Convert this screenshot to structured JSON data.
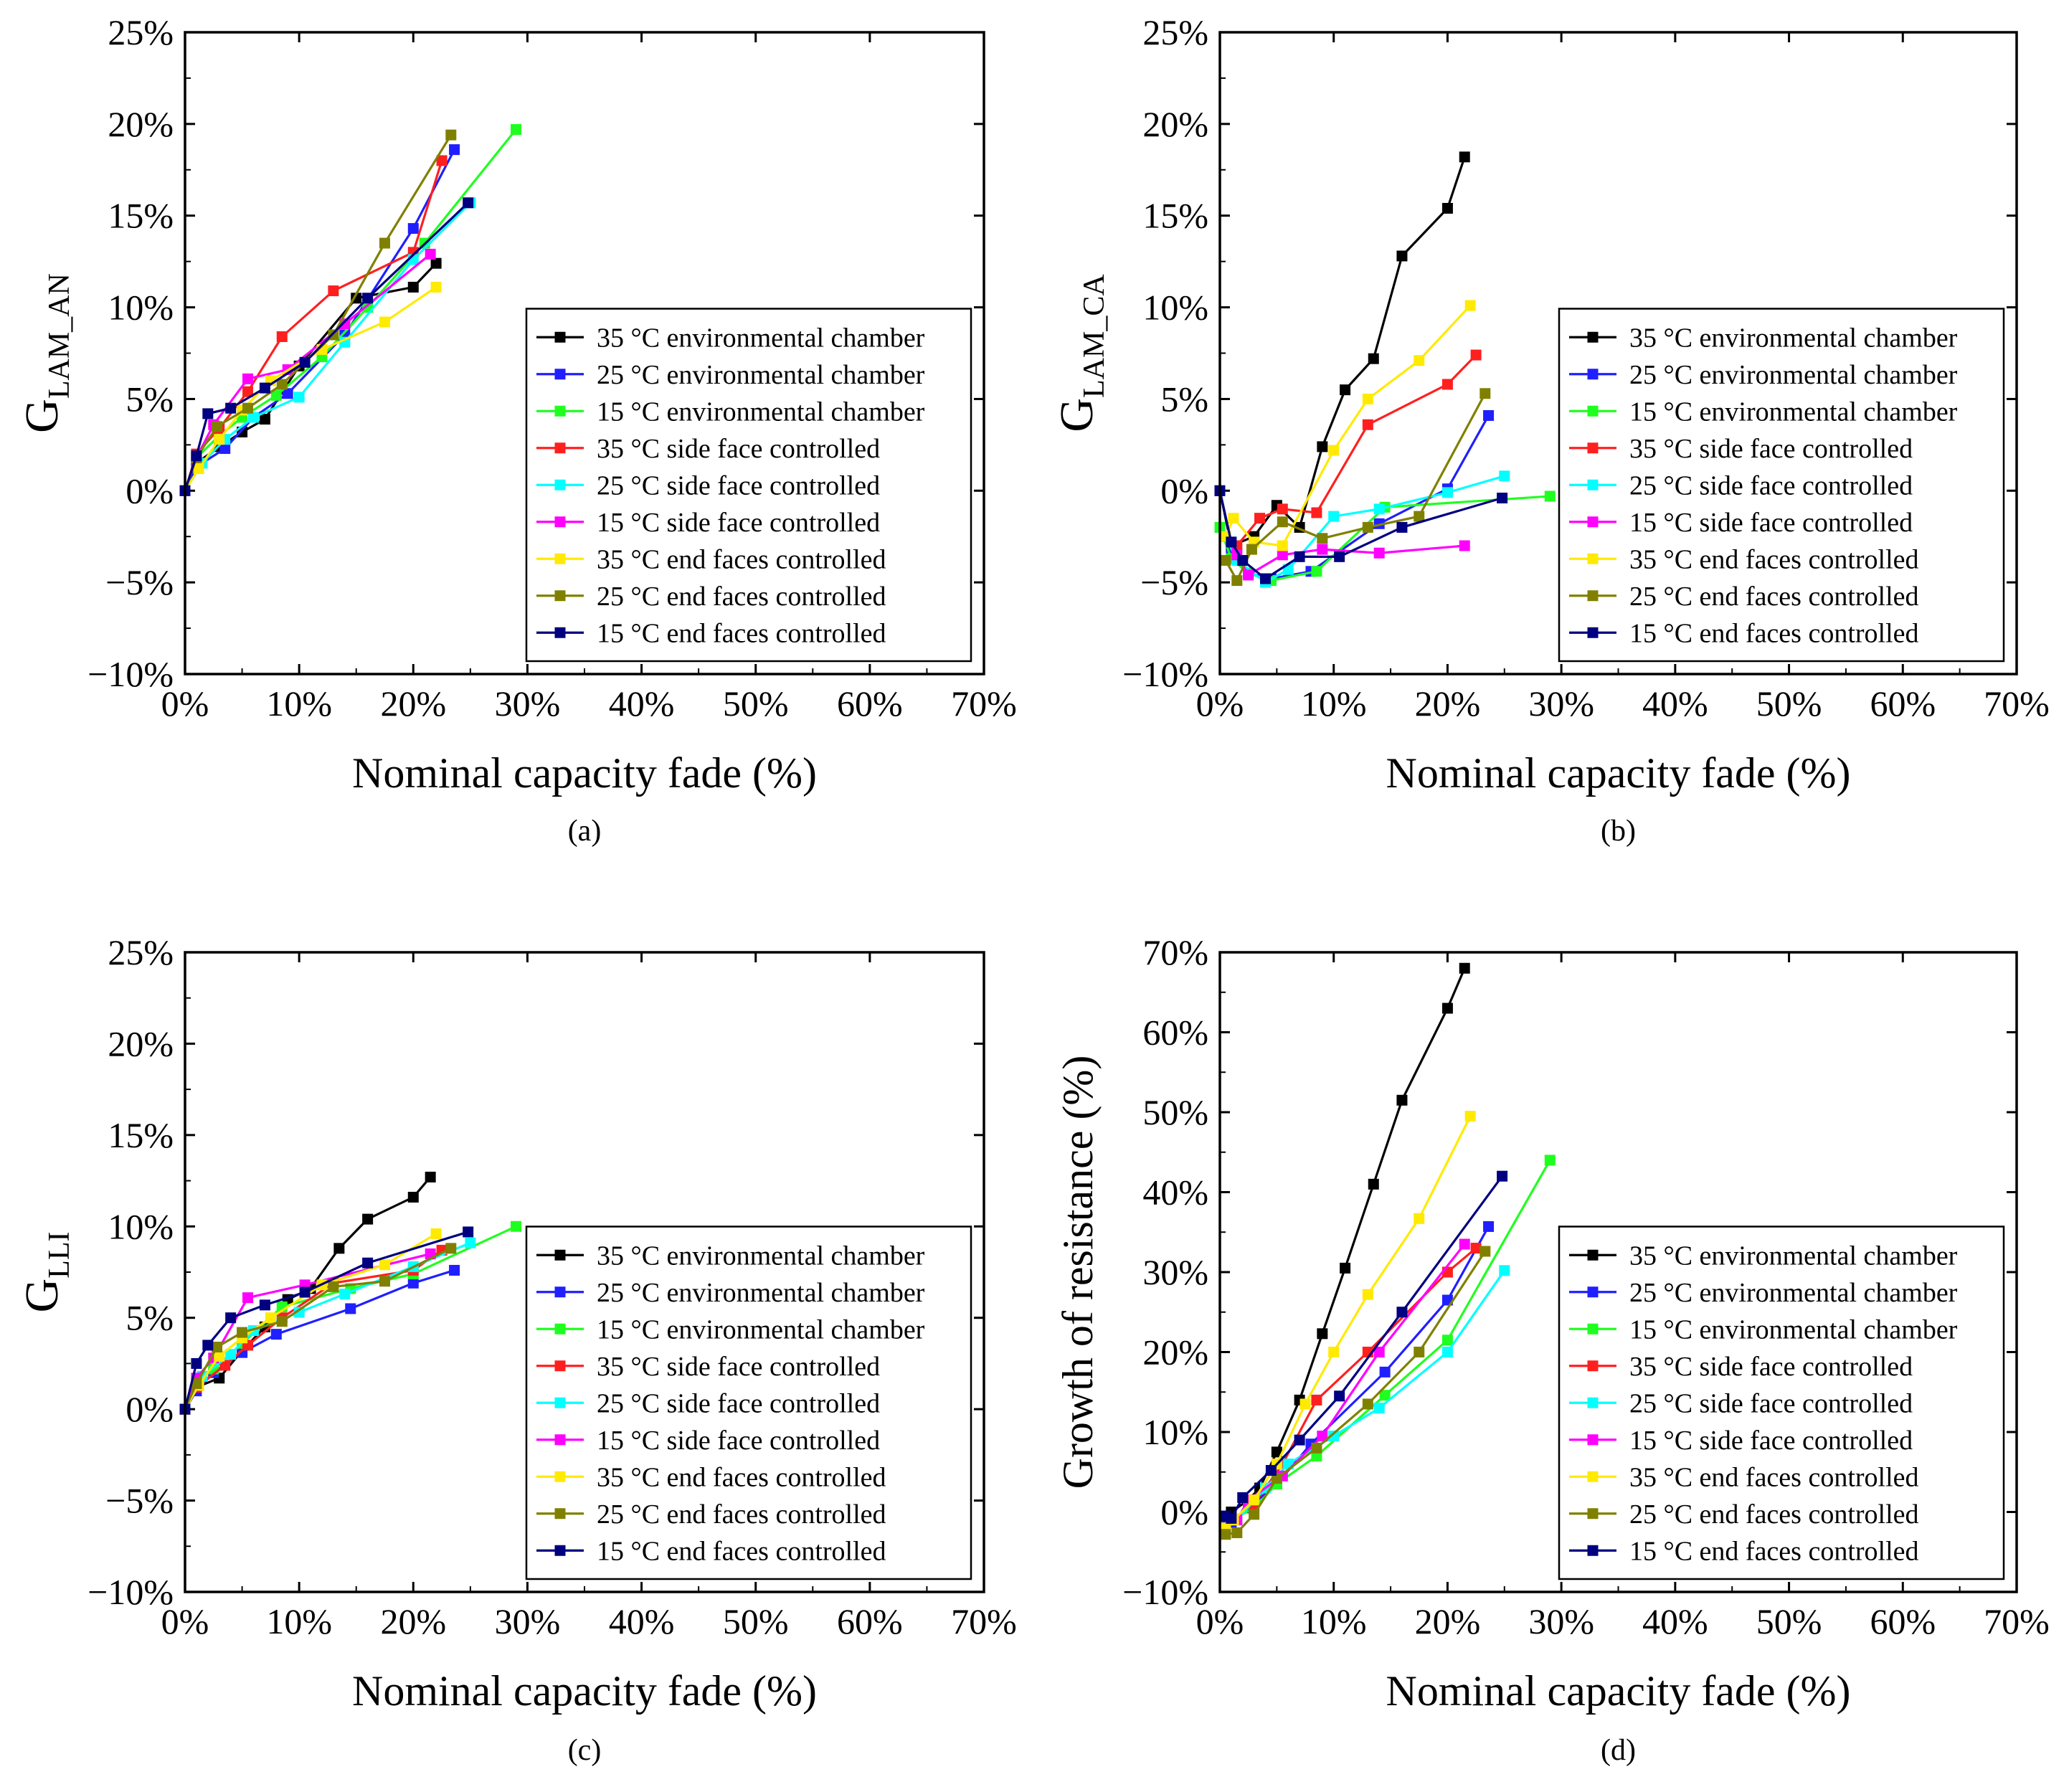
{
  "figure": {
    "legend_labels": [
      "35 °C environmental chamber",
      "25 °C environmental chamber",
      "15 °C environmental chamber",
      "35 °C side face controlled",
      "25 °C side face controlled",
      "15 °C side face controlled",
      "35 °C end faces controlled",
      "25 °C end faces controlled",
      "15 °C end faces controlled"
    ],
    "series_colors": [
      "#000000",
      "#1f1fff",
      "#1fff1f",
      "#ff1f1f",
      "#00ffff",
      "#ff00ff",
      "#ffea00",
      "#808000",
      "#000080"
    ]
  },
  "chart_data": [
    {
      "type": "line",
      "caption": "(a)",
      "ylabel_main": "G",
      "ylabel_sub": "LAM_AN",
      "xlabel": "Nominal capacity fade (%)",
      "xlim": [
        0,
        70
      ],
      "ylim": [
        -10,
        25
      ],
      "xticks": [
        "0%",
        "10%",
        "20%",
        "30%",
        "40%",
        "50%",
        "60%",
        "70%"
      ],
      "yticks": [
        "−10%",
        "−5%",
        "0%",
        "5%",
        "10%",
        "15%",
        "20%",
        "25%"
      ],
      "legend_position": "bottom-right",
      "series": [
        {
          "name": "35 °C environmental chamber",
          "x": [
            0,
            1,
            3,
            5,
            7,
            10,
            15,
            20,
            22
          ],
          "y": [
            0,
            1.5,
            2.4,
            3.2,
            3.9,
            6.8,
            10.5,
            11.1,
            12.4
          ]
        },
        {
          "name": "25 °C environmental chamber",
          "x": [
            0,
            1,
            3.5,
            6,
            9,
            14,
            20,
            23.6
          ],
          "y": [
            0,
            1.3,
            2.3,
            4,
            5.3,
            8.5,
            14.3,
            18.6
          ]
        },
        {
          "name": "15 °C environmental chamber",
          "x": [
            0,
            1,
            3,
            5,
            8,
            12,
            16,
            21,
            29
          ],
          "y": [
            0,
            1.8,
            3,
            4,
            5.2,
            7.3,
            10,
            13.5,
            19.7
          ]
        },
        {
          "name": "35 °C side face controlled",
          "x": [
            0,
            1,
            3,
            5.5,
            8.5,
            13,
            20,
            22.5
          ],
          "y": [
            0,
            2,
            3.4,
            5.4,
            8.4,
            10.9,
            13,
            18
          ]
        },
        {
          "name": "25 °C side face controlled",
          "x": [
            0,
            1.5,
            3.5,
            6,
            10,
            14,
            20,
            25
          ],
          "y": [
            0,
            1.5,
            2.8,
            4,
            5.1,
            8.1,
            12.6,
            15.7
          ]
        },
        {
          "name": "15 °C side face controlled",
          "x": [
            0,
            1,
            2.5,
            5.5,
            9,
            14,
            21.5
          ],
          "y": [
            0,
            1.8,
            3.6,
            6.1,
            6.6,
            9.1,
            12.9
          ]
        },
        {
          "name": "35 °C end faces controlled",
          "x": [
            0,
            1.2,
            3,
            5,
            7.5,
            12,
            17.5,
            22
          ],
          "y": [
            0,
            1.2,
            2.8,
            4.4,
            6,
            7.7,
            9.2,
            11.1
          ]
        },
        {
          "name": "25 °C end faces controlled",
          "x": [
            0,
            1,
            2.8,
            5.5,
            8.5,
            13,
            17.5,
            23.3
          ],
          "y": [
            0,
            1.8,
            3.5,
            4.5,
            5.8,
            8.5,
            13.5,
            19.4
          ]
        },
        {
          "name": "15 °C end faces controlled",
          "x": [
            0,
            1,
            2,
            4,
            7,
            10.5,
            16,
            24.8
          ],
          "y": [
            0,
            1.9,
            4.2,
            4.5,
            5.6,
            7,
            10.5,
            15.7
          ]
        }
      ]
    },
    {
      "type": "line",
      "caption": "(b)",
      "ylabel_main": "G",
      "ylabel_sub": "LAM_CA",
      "xlabel": "Nominal capacity fade (%)",
      "xlim": [
        0,
        70
      ],
      "ylim": [
        -10,
        25
      ],
      "xticks": [
        "0%",
        "10%",
        "20%",
        "30%",
        "40%",
        "50%",
        "60%",
        "70%"
      ],
      "yticks": [
        "−10%",
        "−5%",
        "0%",
        "5%",
        "10%",
        "15%",
        "20%",
        "25%"
      ],
      "legend_position": "bottom-right",
      "series": [
        {
          "name": "35 °C environmental chamber",
          "x": [
            0,
            1,
            3,
            5,
            7,
            9,
            11,
            13.5,
            16,
            20,
            21.5
          ],
          "y": [
            0,
            -3,
            -2.5,
            -0.8,
            -2,
            2.4,
            5.5,
            7.2,
            12.8,
            15.4,
            18.2
          ]
        },
        {
          "name": "25 °C environmental chamber",
          "x": [
            0,
            1,
            2.5,
            4.5,
            8,
            14,
            20,
            23.6
          ],
          "y": [
            -2,
            -3.5,
            -4.5,
            -4.8,
            -4.4,
            -1.8,
            0.1,
            4.1
          ]
        },
        {
          "name": "15 °C environmental chamber",
          "x": [
            0,
            1,
            2.5,
            4.5,
            8.5,
            14.5,
            29
          ],
          "y": [
            -2,
            -3.7,
            -4.5,
            -4.9,
            -4.4,
            -0.9,
            -0.3
          ]
        },
        {
          "name": "35 °C side face controlled",
          "x": [
            0.5,
            1.5,
            3.5,
            5.5,
            8.5,
            13,
            20,
            22.5
          ],
          "y": [
            -2.5,
            -3,
            -1.5,
            -1,
            -1.2,
            3.6,
            5.8,
            7.4
          ]
        },
        {
          "name": "25 °C side face controlled",
          "x": [
            0.5,
            1.5,
            4,
            6,
            10,
            14,
            20,
            25
          ],
          "y": [
            -2.5,
            -3.8,
            -5,
            -4.3,
            -1.4,
            -1,
            -0.1,
            0.8
          ]
        },
        {
          "name": "15 °C side face controlled",
          "x": [
            0.5,
            1.5,
            2.5,
            5.5,
            9,
            14,
            21.5
          ],
          "y": [
            -2.5,
            -3.5,
            -4.6,
            -3.5,
            -3.2,
            -3.4,
            -3
          ]
        },
        {
          "name": "35 °C end faces controlled",
          "x": [
            0.5,
            1.2,
            3,
            5.5,
            10,
            13,
            17.5,
            22
          ],
          "y": [
            -2.5,
            -1.5,
            -2.8,
            -3,
            2.2,
            5,
            7.1,
            10.1
          ]
        },
        {
          "name": "25 °C end faces controlled",
          "x": [
            0.5,
            1.5,
            2.8,
            5.5,
            9,
            13,
            17.5,
            23.3
          ],
          "y": [
            -3.8,
            -4.9,
            -3.2,
            -1.7,
            -2.6,
            -2,
            -1.4,
            5.3
          ]
        },
        {
          "name": "15 °C end faces controlled",
          "x": [
            0,
            1,
            2,
            4,
            7,
            10.5,
            16,
            24.8
          ],
          "y": [
            0,
            -2.8,
            -3.8,
            -4.8,
            -3.6,
            -3.6,
            -2,
            -0.4
          ]
        }
      ]
    },
    {
      "type": "line",
      "caption": "(c)",
      "ylabel_main": "G",
      "ylabel_sub": "LLI",
      "xlabel": "Nominal capacity fade (%)",
      "xlim": [
        0,
        70
      ],
      "ylim": [
        -10,
        25
      ],
      "xticks": [
        "0%",
        "10%",
        "20%",
        "30%",
        "40%",
        "50%",
        "60%",
        "70%"
      ],
      "yticks": [
        "−10%",
        "−5%",
        "0%",
        "5%",
        "10%",
        "15%",
        "20%",
        "25%"
      ],
      "legend_position": "bottom-right",
      "series": [
        {
          "name": "35 °C environmental chamber",
          "x": [
            0,
            1,
            3,
            5,
            7,
            9,
            11,
            13.5,
            16,
            20,
            21.5
          ],
          "y": [
            0,
            1.2,
            1.7,
            3.2,
            4.5,
            6,
            6.6,
            8.8,
            10.4,
            11.6,
            12.7
          ]
        },
        {
          "name": "25 °C environmental chamber",
          "x": [
            0,
            1,
            2.5,
            5,
            8,
            14.5,
            20,
            23.6
          ],
          "y": [
            0,
            1,
            2,
            3.1,
            4.1,
            5.5,
            6.9,
            7.6
          ]
        },
        {
          "name": "15 °C environmental chamber",
          "x": [
            0,
            1,
            2.5,
            5,
            8.5,
            14.5,
            20,
            29
          ],
          "y": [
            0,
            1.5,
            2.2,
            3.6,
            5.6,
            6.6,
            7.4,
            10
          ]
        },
        {
          "name": "35 °C side face controlled",
          "x": [
            0,
            1,
            3.5,
            5.5,
            8.5,
            13,
            20,
            22.5
          ],
          "y": [
            0,
            1.2,
            2.4,
            3.5,
            5,
            6.9,
            7.6,
            8.7
          ]
        },
        {
          "name": "25 °C side face controlled",
          "x": [
            0,
            1.5,
            4,
            6,
            10,
            14,
            20,
            25
          ],
          "y": [
            0,
            1.8,
            3,
            4.3,
            5.3,
            6.3,
            7.8,
            9.1
          ]
        },
        {
          "name": "15 °C side face controlled",
          "x": [
            0,
            1,
            2.5,
            5.5,
            10.5,
            21.5
          ],
          "y": [
            0,
            1.7,
            2.8,
            6.1,
            6.8,
            8.5
          ]
        },
        {
          "name": "35 °C end faces controlled",
          "x": [
            0,
            1.2,
            3,
            5,
            7.5,
            12,
            17.5,
            22
          ],
          "y": [
            0,
            1.3,
            2.9,
            3.9,
            5,
            6.8,
            7.9,
            9.6
          ]
        },
        {
          "name": "25 °C end faces controlled",
          "x": [
            0,
            1,
            2.8,
            5,
            8.5,
            13,
            17.5,
            23.3
          ],
          "y": [
            0,
            1.4,
            3.4,
            4.2,
            4.8,
            6.7,
            7,
            8.8
          ]
        },
        {
          "name": "15 °C end faces controlled",
          "x": [
            0,
            1,
            2,
            4,
            7,
            10.5,
            16,
            24.8
          ],
          "y": [
            0,
            2.5,
            3.5,
            5,
            5.7,
            6.4,
            8,
            9.7
          ]
        }
      ]
    },
    {
      "type": "line",
      "caption": "(d)",
      "ylabel_main": "Growth of resistance (%)",
      "ylabel_sub": "",
      "xlabel": "Nominal capacity fade (%)",
      "xlim": [
        0,
        70
      ],
      "ylim": [
        -10,
        70
      ],
      "xticks": [
        "0%",
        "10%",
        "20%",
        "30%",
        "40%",
        "50%",
        "60%",
        "70%"
      ],
      "yticks": [
        "−10%",
        "0%",
        "10%",
        "20%",
        "30%",
        "40%",
        "50%",
        "60%",
        "70%"
      ],
      "legend_position": "bottom-right",
      "series": [
        {
          "name": "35 °C environmental chamber",
          "x": [
            0.5,
            1,
            2.5,
            3.5,
            5,
            7,
            9,
            11,
            13.5,
            16,
            20,
            21.5
          ],
          "y": [
            -1,
            0,
            1.5,
            3,
            7.5,
            14,
            22.3,
            30.5,
            41,
            51.5,
            63,
            68
          ]
        },
        {
          "name": "25 °C environmental chamber",
          "x": [
            0.5,
            1,
            2.5,
            5,
            8,
            14.5,
            20,
            23.6
          ],
          "y": [
            -1.5,
            -1.3,
            0.5,
            3.5,
            8.5,
            17.5,
            26.5,
            35.7
          ]
        },
        {
          "name": "15 °C environmental chamber",
          "x": [
            0.5,
            1,
            3,
            5,
            8.5,
            14.5,
            20,
            29
          ],
          "y": [
            -2,
            -1,
            0.5,
            3.5,
            7,
            14.6,
            21.5,
            44
          ]
        },
        {
          "name": "35 °C side face controlled",
          "x": [
            0.5,
            1,
            3,
            5.5,
            8.5,
            13,
            20,
            22.5
          ],
          "y": [
            -2,
            -1,
            1,
            6,
            14,
            20,
            30,
            33
          ]
        },
        {
          "name": "25 °C side face controlled",
          "x": [
            0.5,
            1.5,
            4,
            6,
            10,
            14,
            20,
            25
          ],
          "y": [
            -2,
            -1,
            3,
            6,
            9.5,
            13,
            20,
            30.2
          ]
        },
        {
          "name": "15 °C side face controlled",
          "x": [
            0.5,
            1.5,
            2.5,
            5.5,
            9,
            14,
            21.5
          ],
          "y": [
            -2,
            -1,
            1.5,
            4.5,
            9.5,
            20,
            33.5
          ]
        },
        {
          "name": "35 °C end faces controlled",
          "x": [
            0.5,
            1.2,
            3,
            5,
            7.5,
            10,
            13,
            17.5,
            22
          ],
          "y": [
            -2,
            -1,
            1.5,
            6,
            13.5,
            20,
            27.2,
            36.7,
            49.5
          ]
        },
        {
          "name": "25 °C end faces controlled",
          "x": [
            0.5,
            1.5,
            3,
            5,
            8.5,
            13,
            17.5,
            23.3
          ],
          "y": [
            -2.8,
            -2.6,
            -0.3,
            4.2,
            8,
            13.5,
            20,
            32.6
          ]
        },
        {
          "name": "15 °C end faces controlled",
          "x": [
            0.5,
            1,
            2,
            4.5,
            7,
            10.5,
            16,
            24.8
          ],
          "y": [
            -0.5,
            -0.8,
            1.8,
            5.2,
            9,
            14.5,
            25,
            42
          ]
        }
      ]
    }
  ]
}
